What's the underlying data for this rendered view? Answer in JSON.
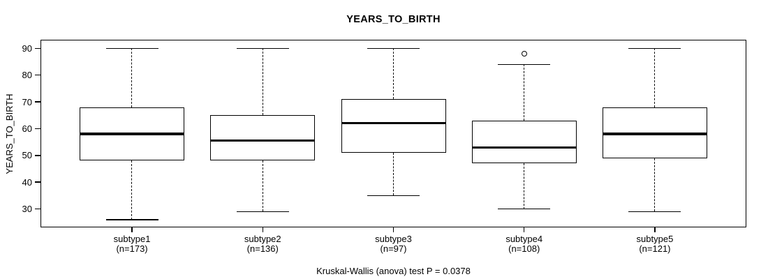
{
  "title": "YEARS_TO_BIRTH",
  "y_axis_label": "YEARS_TO_BIRTH",
  "footer_annotation": "Kruskal-Wallis (anova) test P = 0.0378",
  "colors": {
    "foreground": "#000000",
    "background": "#ffffff"
  },
  "chart_data": {
    "type": "boxplot",
    "title": "YEARS_TO_BIRTH",
    "xlabel": "",
    "ylabel": "YEARS_TO_BIRTH",
    "ylim": [
      23.1,
      93.2
    ],
    "yticks": [
      30,
      40,
      50,
      60,
      70,
      80,
      90
    ],
    "grid": false,
    "legend": false,
    "categories": [
      "subtype1",
      "subtype2",
      "subtype3",
      "subtype4",
      "subtype5"
    ],
    "count_labels": [
      "(n=173)",
      "(n=136)",
      "(n=97)",
      "(n=108)",
      "(n=121)"
    ],
    "series": [
      {
        "name": "subtype1",
        "n": 173,
        "whisker_low": 26,
        "q1": 48,
        "median": 58,
        "q3": 68,
        "whisker_high": 90,
        "outliers": []
      },
      {
        "name": "subtype2",
        "n": 136,
        "whisker_low": 29,
        "q1": 48,
        "median": 55.5,
        "q3": 65,
        "whisker_high": 90,
        "outliers": []
      },
      {
        "name": "subtype3",
        "n": 97,
        "whisker_low": 35,
        "q1": 51,
        "median": 62,
        "q3": 71,
        "whisker_high": 90,
        "outliers": []
      },
      {
        "name": "subtype4",
        "n": 108,
        "whisker_low": 30,
        "q1": 47,
        "median": 53,
        "q3": 63,
        "whisker_high": 84,
        "outliers": [
          88
        ]
      },
      {
        "name": "subtype5",
        "n": 121,
        "whisker_low": 29,
        "q1": 49,
        "median": 58,
        "q3": 68,
        "whisker_high": 90,
        "outliers": []
      }
    ],
    "annotation": "Kruskal-Wallis (anova) test P = 0.0378"
  }
}
